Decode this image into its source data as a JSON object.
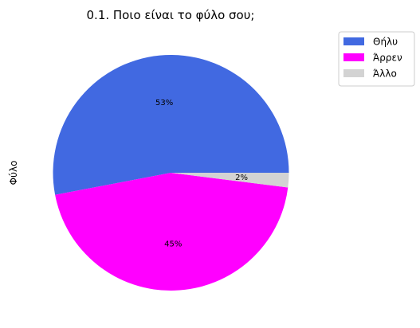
{
  "chart_data": {
    "type": "pie",
    "title": "0.1. Ποιο είναι το φύλο σου;",
    "ylabel": "Φύλο",
    "legend_position": "top-right",
    "slices": [
      {
        "label": "Θήλυ",
        "value": 53,
        "pct_label": "53%",
        "color": "#4169e1"
      },
      {
        "label": "Άρρεν",
        "value": 45,
        "pct_label": "45%",
        "color": "#ff00ff"
      },
      {
        "label": "Άλλο",
        "value": 2,
        "pct_label": "2%",
        "color": "#d3d3d3"
      }
    ]
  }
}
